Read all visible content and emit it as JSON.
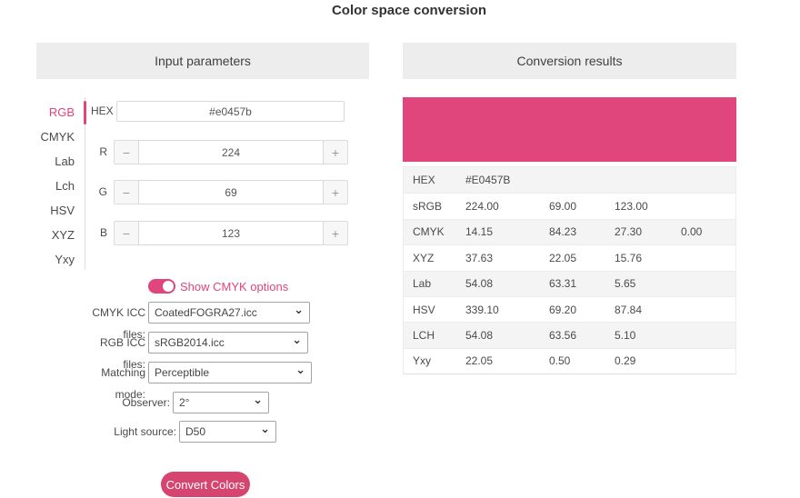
{
  "title": "Color space conversion",
  "colors": {
    "accent": "#e0457b",
    "button": "#d6456f",
    "header_bg": "#ededed",
    "table_stripe": "#f4f4f4"
  },
  "icons": {
    "minus": "−",
    "plus": "+",
    "chevron_down": "⌄"
  },
  "input_panel": {
    "header": "Input parameters",
    "tabs": [
      {
        "label": "RGB",
        "active": true
      },
      {
        "label": "CMYK"
      },
      {
        "label": "Lab"
      },
      {
        "label": "Lch"
      },
      {
        "label": "HSV"
      },
      {
        "label": "XYZ"
      },
      {
        "label": "Yxy"
      }
    ],
    "hex": {
      "label": "HEX",
      "value": "#e0457b"
    },
    "steppers": [
      {
        "label": "R",
        "value": "224"
      },
      {
        "label": "G",
        "value": "69"
      },
      {
        "label": "B",
        "value": "123"
      }
    ],
    "toggle": {
      "label": "Show CMYK options",
      "state": "on"
    },
    "selects": [
      {
        "label": "CMYK ICC files:",
        "value": "CoatedFOGRA27.icc"
      },
      {
        "label": "RGB ICC files:",
        "value": "sRGB2014.icc"
      },
      {
        "label": "Matching mode:",
        "value": "Perceptible"
      },
      {
        "label": "Observer:",
        "value": "2°"
      },
      {
        "label": "Light source:",
        "value": "D50"
      }
    ],
    "convert_button_label": "Convert Colors"
  },
  "results_panel": {
    "header": "Conversion results",
    "swatch_color": "#e0457b",
    "table": {
      "rows": [
        {
          "label": "HEX",
          "values": [
            "#E0457B",
            "",
            "",
            ""
          ]
        },
        {
          "label": "sRGB",
          "values": [
            "224.00",
            "69.00",
            "123.00",
            ""
          ]
        },
        {
          "label": "CMYK",
          "values": [
            "14.15",
            "84.23",
            "27.30",
            "0.00"
          ]
        },
        {
          "label": "XYZ",
          "values": [
            "37.63",
            "22.05",
            "15.76",
            ""
          ]
        },
        {
          "label": "Lab",
          "values": [
            "54.08",
            "63.31",
            "5.65",
            ""
          ]
        },
        {
          "label": "HSV",
          "values": [
            "339.10",
            "69.20",
            "87.84",
            ""
          ]
        },
        {
          "label": "LCH",
          "values": [
            "54.08",
            "63.56",
            "5.10",
            ""
          ]
        },
        {
          "label": "Yxy",
          "values": [
            "22.05",
            "0.50",
            "0.29",
            ""
          ]
        }
      ]
    }
  }
}
